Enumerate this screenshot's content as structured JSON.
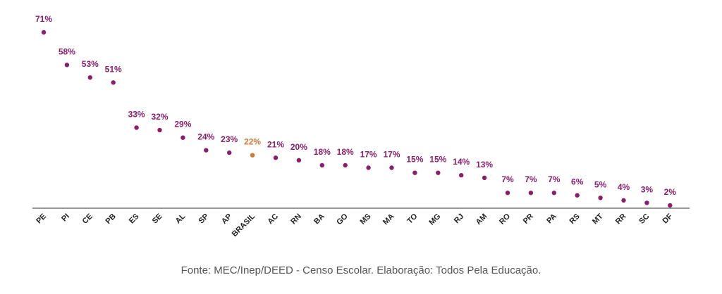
{
  "chart_data": {
    "type": "scatter",
    "title": "",
    "xlabel": "",
    "ylabel": "",
    "ylim": [
      0,
      71
    ],
    "grid": false,
    "legend": "none",
    "categories": [
      "PE",
      "PI",
      "CE",
      "PB",
      "ES",
      "SE",
      "AL",
      "SP",
      "AP",
      "BRASIL",
      "AC",
      "RN",
      "BA",
      "GO",
      "MS",
      "MA",
      "TO",
      "MG",
      "RJ",
      "AM",
      "RO",
      "PR",
      "PA",
      "RS",
      "MT",
      "RR",
      "SC",
      "DF"
    ],
    "values": [
      71,
      58,
      53,
      51,
      33,
      32,
      29,
      24,
      23,
      22,
      21,
      20,
      18,
      18,
      17,
      17,
      15,
      15,
      14,
      13,
      7,
      7,
      7,
      6,
      5,
      4,
      3,
      2
    ],
    "labels": [
      "71%",
      "58%",
      "53%",
      "51%",
      "33%",
      "32%",
      "29%",
      "24%",
      "23%",
      "22%",
      "21%",
      "20%",
      "18%",
      "18%",
      "17%",
      "17%",
      "15%",
      "15%",
      "14%",
      "13%",
      "7%",
      "7%",
      "7%",
      "6%",
      "5%",
      "4%",
      "3%",
      "2%"
    ],
    "highlight": "BRASIL",
    "colors": {
      "series": "#8b1e6b",
      "highlight": "#d17a3a",
      "axis": "#333333",
      "tick": "#222222"
    }
  },
  "footer": {
    "source": "Fonte: MEC/Inep/DEED - Censo Escolar. Elaboração: Todos Pela Educação."
  }
}
